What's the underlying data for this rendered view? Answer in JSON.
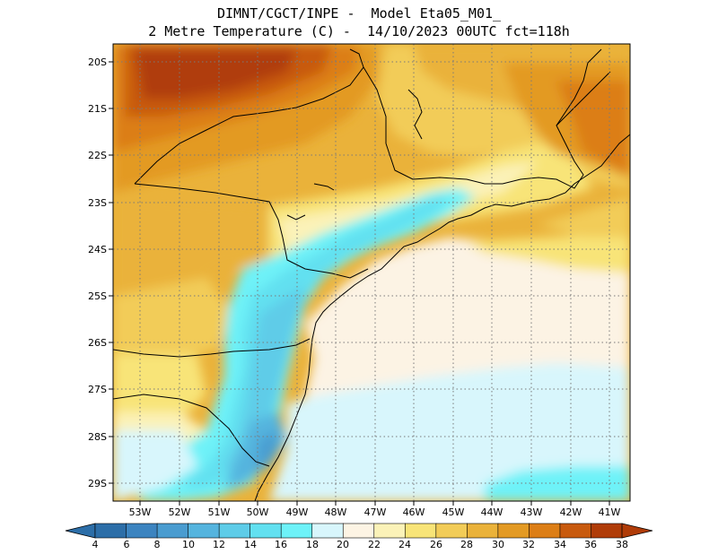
{
  "title": {
    "line1": "DIMNT/CGCT/INPE -  Model Eta05_M01_",
    "line2": "2 Metre Temperature (C) -  14/10/2023 00UTC fct=118h"
  },
  "map": {
    "lat_labels": [
      "20S",
      "21S",
      "22S",
      "23S",
      "24S",
      "25S",
      "26S",
      "27S",
      "28S",
      "29S"
    ],
    "lon_labels": [
      "53W",
      "52W",
      "51W",
      "50W",
      "49W",
      "48W",
      "47W",
      "46W",
      "45W",
      "44W",
      "43W",
      "42W",
      "41W"
    ]
  },
  "colorbar": {
    "labels": [
      "4",
      "6",
      "8",
      "10",
      "12",
      "14",
      "16",
      "18",
      "20",
      "22",
      "24",
      "26",
      "28",
      "30",
      "32",
      "34",
      "36",
      "38"
    ],
    "colors": [
      "#2c6ea8",
      "#3c84c0",
      "#4a9cd0",
      "#55b4de",
      "#5ecce8",
      "#62e0f0",
      "#6ef2f8",
      "#d8f6fc",
      "#fdf4e4",
      "#fbf2b8",
      "#f8e478",
      "#f2cc58",
      "#eab23a",
      "#e39a24",
      "#dc7e16",
      "#c85a0e",
      "#b03c08"
    ]
  },
  "colors": {
    "ocean": "#fcf3e4",
    "land_warm": "#eab23a"
  }
}
